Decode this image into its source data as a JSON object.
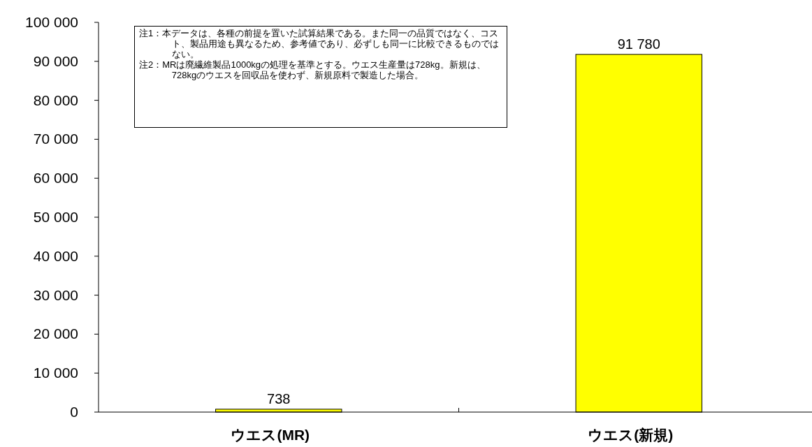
{
  "chart_data": {
    "type": "bar",
    "categories": [
      "ウエス(MR)",
      "ウエス(新規)"
    ],
    "values": [
      738,
      91780
    ],
    "value_labels": [
      "738",
      "91 780"
    ],
    "color": "#ffff00",
    "ylim": [
      0,
      100000
    ],
    "yticks": [
      {
        "value": 0,
        "label": "0"
      },
      {
        "value": 10000,
        "label": "10 000"
      },
      {
        "value": 20000,
        "label": "20 000"
      },
      {
        "value": 30000,
        "label": "30 000"
      },
      {
        "value": 40000,
        "label": "40 000"
      },
      {
        "value": 50000,
        "label": "50 000"
      },
      {
        "value": 60000,
        "label": "60 000"
      },
      {
        "value": 70000,
        "label": "70 000"
      },
      {
        "value": 80000,
        "label": "80 000"
      },
      {
        "value": 90000,
        "label": "90 000"
      },
      {
        "value": 100000,
        "label": "100 000"
      }
    ],
    "grid": false,
    "annotations": [
      "注1：本データは、各種の前提を置いた試算結果である。また同一の品質ではなく、コスト、製品用途も異なるため、参考値であり、必ずしも同一に比較できるものではない。",
      "注2：MRは廃繊維製品1000kgの処理を基準とする。ウエス生産量は728kg。新規は、728kgのウエスを回収品を使わず、新規原料で製造した場合。"
    ]
  }
}
